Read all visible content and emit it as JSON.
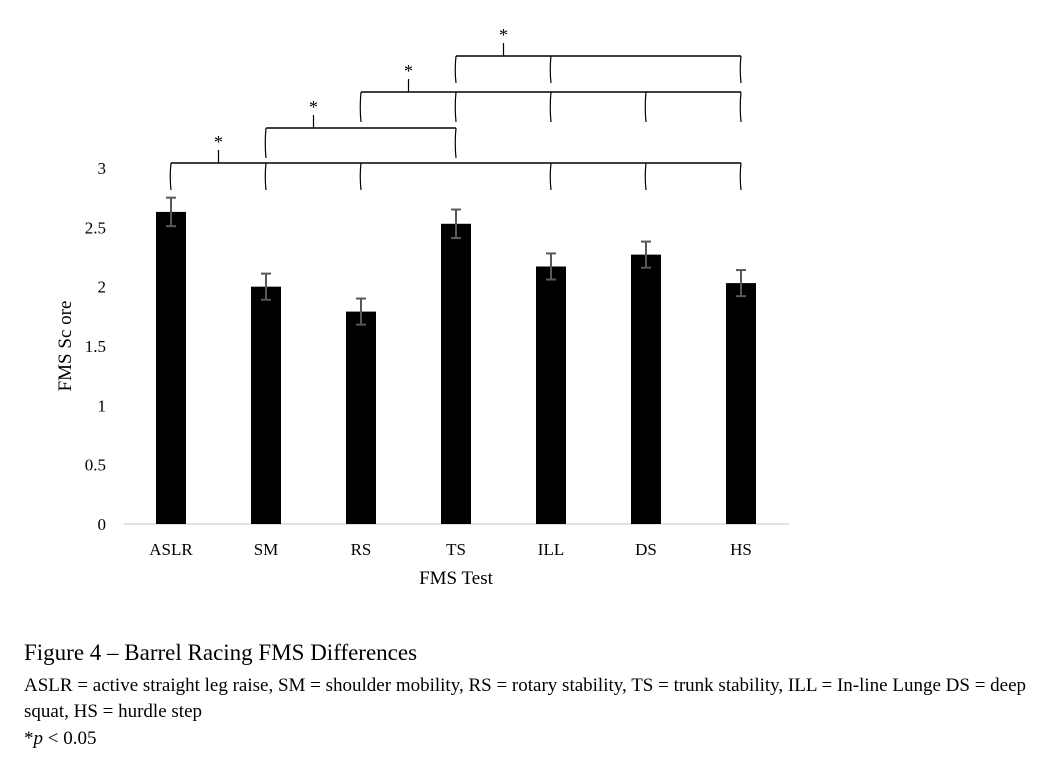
{
  "chart_data": {
    "type": "bar",
    "xlabel": "FMS Test",
    "ylabel": "FMS Sc ore",
    "categories": [
      "ASLR",
      "SM",
      "RS",
      "TS",
      "ILL",
      "DS",
      "HS"
    ],
    "values": [
      2.63,
      2.0,
      1.79,
      2.53,
      2.17,
      2.27,
      2.03
    ],
    "error": [
      0.12,
      0.11,
      0.11,
      0.12,
      0.11,
      0.11,
      0.11
    ],
    "ylim": [
      0,
      3
    ],
    "yticks": [
      "0",
      "0.5",
      "1",
      "1.5",
      "2",
      "2.5",
      "3"
    ],
    "bar_color": "#000000",
    "grid": false,
    "significance": [
      {
        "from": "ASLR",
        "to": [
          "SM",
          "RS",
          "ILL",
          "DS",
          "HS"
        ],
        "label": "*"
      },
      {
        "from": "SM",
        "to": [
          "TS"
        ],
        "label": "*"
      },
      {
        "from": "RS",
        "to": [
          "TS",
          "ILL",
          "DS",
          "HS"
        ],
        "label": "*"
      },
      {
        "from": "TS",
        "to": [
          "ILL",
          "HS"
        ],
        "label": "*"
      }
    ]
  },
  "caption": {
    "title": "Figure 4 – Barrel Racing FMS Differences",
    "abbreviations": "ASLR = active straight leg raise, SM = shoulder mobility, RS = rotary stability, TS = trunk stability, ILL = In-line Lunge DS = deep squat, HS = hurdle step",
    "p_prefix": "*",
    "p_symbol": "p",
    "p_suffix": " < 0.05"
  }
}
